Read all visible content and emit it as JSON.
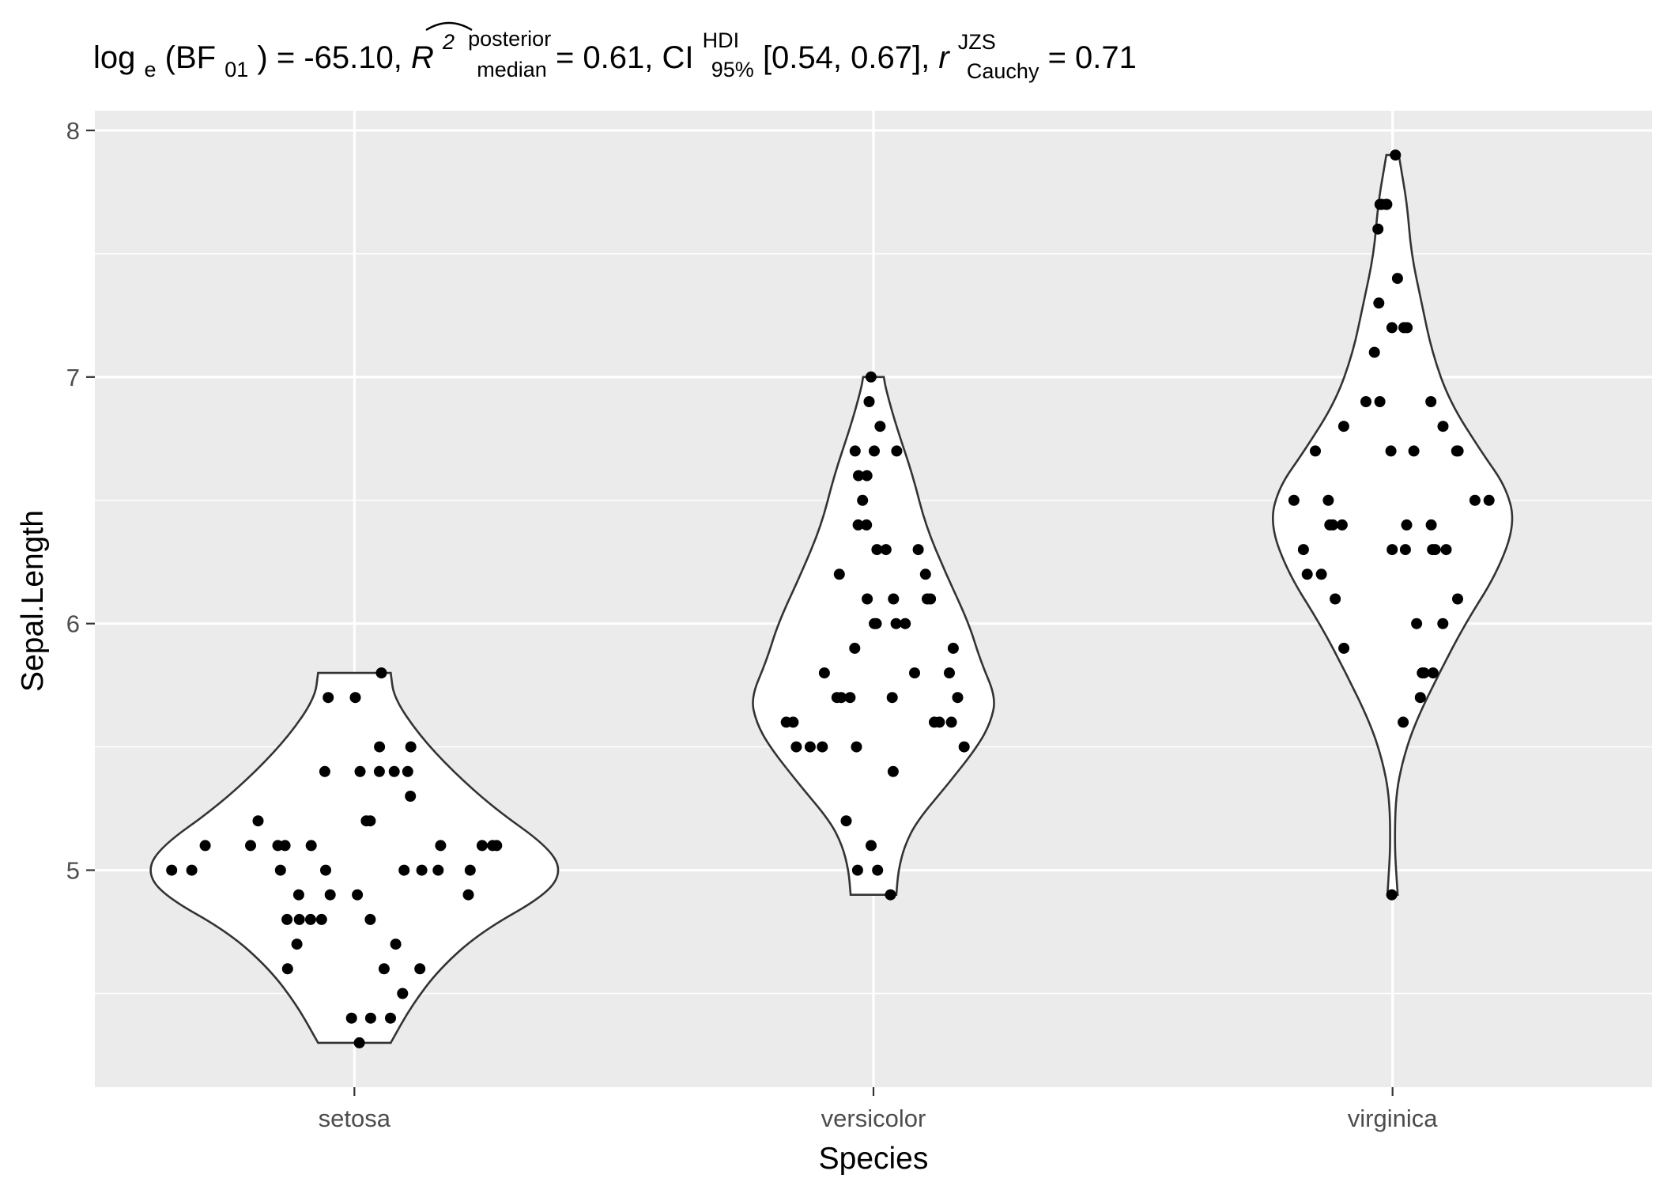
{
  "chart_data": {
    "type": "violin",
    "title": {
      "p1": "log",
      "p1_sub": "e",
      "p2": "(BF",
      "p2_sub": "01",
      "p3": ") = -65.10, ",
      "r_sym": "R",
      "r_sup": "2",
      "r_postsup": "posterior",
      "r_postsub": "median",
      "p4": " = 0.61, CI",
      "ci_sup": "HDI",
      "ci_sub": "95%",
      "p5": " [0.54, 0.67], ",
      "rc_sym": "r",
      "rc_sup": "JZS",
      "rc_sub": "Cauchy",
      "p6": " = 0.71"
    },
    "xlabel": "Species",
    "ylabel": "Sepal.Length",
    "ylim": [
      4.12,
      8.08
    ],
    "yticks": [
      5,
      6,
      7,
      8
    ],
    "categories": [
      "setosa",
      "versicolor",
      "virginica"
    ],
    "grid": true,
    "panel_bg": "#ebebeb",
    "point_color": "#000000",
    "violin_stroke": "#333333",
    "series": [
      {
        "category": "setosa",
        "values": [
          5.0,
          5.1,
          4.8,
          4.7,
          5.4,
          5.4,
          5.4,
          5.3,
          5.1,
          5.2,
          5.0,
          5.0,
          5.0,
          4.8,
          4.8,
          4.7,
          4.6,
          4.6,
          4.4,
          4.4,
          5.8,
          5.4,
          5.7,
          5.7,
          5.5,
          5.5,
          5.4,
          4.3,
          4.5,
          4.4,
          5.1,
          4.9,
          4.9,
          4.8,
          5.2,
          5.0,
          4.9,
          5.1,
          4.6,
          5.2,
          5.0,
          5.1,
          5.1,
          5.1,
          4.8,
          4.9,
          5.0,
          5.1,
          5.1,
          5.0
        ],
        "violin": [
          [
            4.3,
            0.35
          ],
          [
            4.45,
            0.55
          ],
          [
            4.6,
            0.82
          ],
          [
            4.75,
            1.22
          ],
          [
            4.9,
            1.85
          ],
          [
            5.0,
            2.0
          ],
          [
            5.1,
            1.85
          ],
          [
            5.25,
            1.35
          ],
          [
            5.4,
            0.95
          ],
          [
            5.55,
            0.62
          ],
          [
            5.7,
            0.38
          ],
          [
            5.8,
            0.35
          ]
        ]
      },
      {
        "category": "versicolor",
        "values": [
          7.0,
          6.9,
          6.8,
          6.7,
          6.7,
          6.7,
          6.6,
          6.6,
          6.5,
          6.4,
          6.4,
          6.3,
          6.3,
          6.2,
          6.2,
          6.1,
          6.1,
          6.1,
          6.0,
          6.0,
          6.0,
          6.0,
          5.9,
          5.9,
          5.8,
          5.8,
          5.7,
          5.7,
          5.7,
          5.7,
          5.6,
          5.6,
          5.6,
          5.6,
          5.6,
          5.5,
          5.5,
          5.5,
          5.5,
          5.5,
          5.4,
          5.2,
          5.1,
          5.0,
          5.0,
          4.9,
          5.8,
          5.7,
          6.1,
          6.3
        ],
        "violin": [
          [
            4.9,
            0.22
          ],
          [
            5.0,
            0.24
          ],
          [
            5.1,
            0.3
          ],
          [
            5.2,
            0.42
          ],
          [
            5.35,
            0.72
          ],
          [
            5.5,
            1.0
          ],
          [
            5.6,
            1.13
          ],
          [
            5.7,
            1.18
          ],
          [
            5.85,
            1.03
          ],
          [
            6.0,
            0.92
          ],
          [
            6.2,
            0.7
          ],
          [
            6.4,
            0.5
          ],
          [
            6.6,
            0.38
          ],
          [
            6.8,
            0.22
          ],
          [
            6.95,
            0.12
          ],
          [
            7.0,
            0.1
          ]
        ]
      },
      {
        "category": "virginica",
        "values": [
          7.9,
          7.7,
          7.7,
          7.7,
          7.7,
          7.6,
          7.4,
          7.3,
          7.2,
          7.2,
          7.2,
          7.1,
          6.9,
          6.9,
          6.9,
          6.8,
          6.8,
          6.7,
          6.7,
          6.7,
          6.7,
          6.7,
          6.5,
          6.5,
          6.5,
          6.5,
          6.4,
          6.4,
          6.4,
          6.4,
          6.4,
          6.3,
          6.3,
          6.3,
          6.3,
          6.3,
          6.3,
          6.2,
          6.2,
          6.1,
          6.1,
          6.0,
          6.0,
          5.9,
          5.8,
          5.8,
          5.8,
          5.7,
          5.6,
          4.9
        ],
        "violin": [
          [
            4.9,
            0.05
          ],
          [
            4.96,
            0.04
          ],
          [
            5.1,
            0.02
          ],
          [
            5.3,
            0.03
          ],
          [
            5.45,
            0.1
          ],
          [
            5.6,
            0.22
          ],
          [
            5.8,
            0.45
          ],
          [
            6.0,
            0.7
          ],
          [
            6.2,
            1.0
          ],
          [
            6.4,
            1.18
          ],
          [
            6.55,
            1.1
          ],
          [
            6.7,
            0.85
          ],
          [
            6.9,
            0.55
          ],
          [
            7.1,
            0.38
          ],
          [
            7.3,
            0.28
          ],
          [
            7.5,
            0.18
          ],
          [
            7.7,
            0.14
          ],
          [
            7.85,
            0.08
          ],
          [
            7.9,
            0.06
          ]
        ]
      }
    ]
  }
}
